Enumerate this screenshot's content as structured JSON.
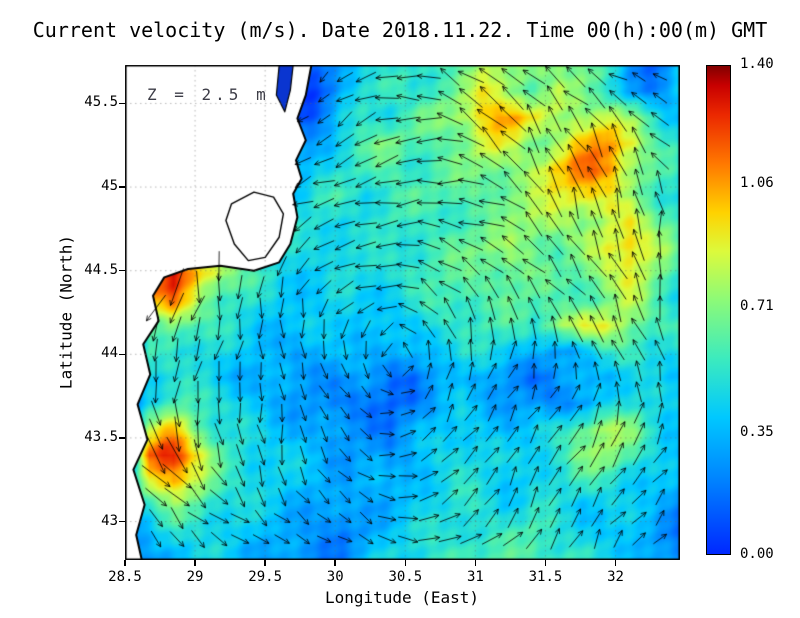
{
  "title": "Current velocity (m/s). Date 2018.11.22. Time 00(h):00(m) GMT",
  "annotation": "Z = 2.5 m",
  "axes": {
    "x_label": "Longitude (East)",
    "y_label": "Latitude (North)",
    "x_ticks": [
      {
        "v": 28.5,
        "label": "28.5"
      },
      {
        "v": 29,
        "label": "29"
      },
      {
        "v": 29.5,
        "label": "29.5"
      },
      {
        "v": 30,
        "label": "30"
      },
      {
        "v": 30.5,
        "label": "30.5"
      },
      {
        "v": 31,
        "label": "31"
      },
      {
        "v": 31.5,
        "label": "31.5"
      },
      {
        "v": 32,
        "label": "32"
      }
    ],
    "y_ticks": [
      {
        "v": 45.5,
        "label": "45.5"
      },
      {
        "v": 45,
        "label": "45"
      },
      {
        "v": 44.5,
        "label": "44.5"
      },
      {
        "v": 44,
        "label": "44"
      },
      {
        "v": 43.5,
        "label": "43.5"
      },
      {
        "v": 43,
        "label": "43"
      }
    ]
  },
  "colorbar": {
    "min": 0.0,
    "max": 1.4,
    "ticks": [
      {
        "v": 1.4,
        "label": "1.40"
      },
      {
        "v": 1.06,
        "label": "1.06"
      },
      {
        "v": 0.71,
        "label": "0.71"
      },
      {
        "v": 0.35,
        "label": "0.35"
      },
      {
        "v": 0.0,
        "label": "0.00"
      }
    ],
    "colormap": [
      {
        "t": 0.0,
        "color": "#0028ff"
      },
      {
        "t": 0.15,
        "color": "#0082ff"
      },
      {
        "t": 0.28,
        "color": "#00c8ff"
      },
      {
        "t": 0.4,
        "color": "#3cebbe"
      },
      {
        "t": 0.52,
        "color": "#8cfa78"
      },
      {
        "t": 0.62,
        "color": "#dcfa3c"
      },
      {
        "t": 0.7,
        "color": "#ffd200"
      },
      {
        "t": 0.8,
        "color": "#ff7800"
      },
      {
        "t": 0.9,
        "color": "#eb2800"
      },
      {
        "t": 0.96,
        "color": "#c80000"
      },
      {
        "t": 1.0,
        "color": "#820000"
      }
    ]
  },
  "colors": {
    "land": "#ffffff",
    "coastline": "#000000",
    "arrows": "#000000",
    "river_inlet": "#0a35d0",
    "gridlines": "#666666"
  },
  "chart_data": {
    "type": "heatmap",
    "title": "Current velocity (m/s). Date 2018.11.22. Time 00(h):00(m) GMT",
    "xlabel": "Longitude (East)",
    "ylabel": "Latitude (North)",
    "units": "m/s",
    "depth_annotation": "Z = 2.5 m",
    "x_range": [
      28.5,
      32.46
    ],
    "y_range": [
      42.77,
      45.73
    ],
    "value_range": [
      0.0,
      1.4
    ],
    "gridline_step": 0.5,
    "grid_speed": {
      "cols": 24,
      "rows": 20,
      "order": "north-to-south",
      "values": [
        [
          0,
          0,
          0,
          0,
          0,
          0,
          0,
          0.05,
          0.1,
          0.35,
          0.5,
          0.45,
          0.5,
          0.6,
          0.65,
          0.8,
          0.7,
          0.7,
          0.75,
          0.7,
          0.5,
          0.25,
          0.2,
          0.35
        ],
        [
          0,
          0,
          0,
          0,
          0,
          0,
          0,
          0.05,
          0.1,
          0.3,
          0.5,
          0.6,
          0.5,
          0.6,
          0.7,
          0.9,
          0.8,
          0.6,
          0.8,
          0.7,
          0.5,
          0.3,
          0.2,
          0.4
        ],
        [
          0,
          0,
          0,
          0,
          0,
          0,
          0,
          0.1,
          0.15,
          0.4,
          0.55,
          0.5,
          0.6,
          0.7,
          0.8,
          1.0,
          1.1,
          0.9,
          0.7,
          0.8,
          0.9,
          0.7,
          0.5,
          0.4
        ],
        [
          0,
          0,
          0,
          0,
          0,
          0,
          0.15,
          0.2,
          0.3,
          0.5,
          0.6,
          0.7,
          0.6,
          0.6,
          0.7,
          0.9,
          0.8,
          0.7,
          0.8,
          1.0,
          1.1,
          0.9,
          0.6,
          0.5
        ],
        [
          0,
          0,
          0,
          0,
          0,
          0,
          0.3,
          0.3,
          0.45,
          0.5,
          0.55,
          0.6,
          0.55,
          0.6,
          0.65,
          0.7,
          0.7,
          0.8,
          1.0,
          1.15,
          1.1,
          0.8,
          0.6,
          0.5
        ],
        [
          0,
          0,
          0,
          0,
          0,
          0.25,
          0.3,
          0.4,
          0.5,
          0.55,
          0.5,
          0.55,
          0.6,
          0.6,
          0.6,
          0.65,
          0.7,
          0.75,
          0.9,
          1.0,
          0.9,
          0.7,
          0.55,
          0.5
        ],
        [
          0,
          0,
          0,
          0.4,
          0.5,
          0.6,
          0.55,
          0.5,
          0.5,
          0.45,
          0.5,
          0.55,
          0.5,
          0.55,
          0.6,
          0.6,
          0.7,
          0.8,
          0.8,
          0.7,
          0.8,
          0.9,
          0.7,
          0.6
        ],
        [
          0,
          0,
          0.8,
          0.9,
          0.7,
          0.6,
          0.5,
          0.45,
          0.5,
          0.5,
          0.45,
          0.5,
          0.55,
          0.6,
          0.65,
          0.7,
          0.75,
          0.7,
          0.6,
          0.7,
          0.9,
          1.0,
          0.8,
          0.6
        ],
        [
          0,
          1.2,
          1.35,
          1.0,
          0.8,
          0.6,
          0.5,
          0.45,
          0.4,
          0.45,
          0.5,
          0.5,
          0.55,
          0.6,
          0.6,
          0.65,
          0.7,
          0.65,
          0.6,
          0.65,
          0.8,
          0.9,
          0.7,
          0.55
        ],
        [
          0,
          1.0,
          1.1,
          0.8,
          0.6,
          0.5,
          0.45,
          0.4,
          0.4,
          0.45,
          0.4,
          0.45,
          0.5,
          0.55,
          0.6,
          0.6,
          0.65,
          0.6,
          0.55,
          0.6,
          0.7,
          0.8,
          0.6,
          0.5
        ],
        [
          0.05,
          0.6,
          0.7,
          0.6,
          0.5,
          0.45,
          0.4,
          0.35,
          0.4,
          0.45,
          0.4,
          0.35,
          0.4,
          0.5,
          0.55,
          0.6,
          0.55,
          0.5,
          0.8,
          0.9,
          0.85,
          0.7,
          0.6,
          0.55
        ],
        [
          0.05,
          0.5,
          0.55,
          0.5,
          0.45,
          0.4,
          0.35,
          0.3,
          0.35,
          0.4,
          0.35,
          0.3,
          0.35,
          0.45,
          0.5,
          0.45,
          0.4,
          0.35,
          0.3,
          0.35,
          0.5,
          0.6,
          0.5,
          0.45
        ],
        [
          0.05,
          0.45,
          0.5,
          0.45,
          0.4,
          0.35,
          0.3,
          0.3,
          0.3,
          0.25,
          0.25,
          0.2,
          0.2,
          0.3,
          0.35,
          0.3,
          0.25,
          0.2,
          0.25,
          0.3,
          0.4,
          0.45,
          0.4,
          0.35
        ],
        [
          0.05,
          0.5,
          0.6,
          0.55,
          0.5,
          0.4,
          0.35,
          0.3,
          0.25,
          0.2,
          0.2,
          0.15,
          0.2,
          0.3,
          0.4,
          0.35,
          0.3,
          0.25,
          0.2,
          0.3,
          0.45,
          0.5,
          0.45,
          0.4
        ],
        [
          0.1,
          0.8,
          1.0,
          0.7,
          0.5,
          0.45,
          0.4,
          0.35,
          0.3,
          0.25,
          0.25,
          0.2,
          0.3,
          0.4,
          0.45,
          0.4,
          0.35,
          0.4,
          0.5,
          0.7,
          0.8,
          0.7,
          0.5,
          0.4
        ],
        [
          0.1,
          1.2,
          1.3,
          0.9,
          0.6,
          0.5,
          0.45,
          0.4,
          0.35,
          0.3,
          0.3,
          0.25,
          0.35,
          0.45,
          0.5,
          0.45,
          0.4,
          0.45,
          0.55,
          0.7,
          0.75,
          0.6,
          0.45,
          0.35
        ],
        [
          0.1,
          0.9,
          1.1,
          0.8,
          0.55,
          0.5,
          0.45,
          0.4,
          0.35,
          0.3,
          0.35,
          0.3,
          0.4,
          0.45,
          0.5,
          0.45,
          0.4,
          0.45,
          0.5,
          0.55,
          0.5,
          0.45,
          0.4,
          0.3
        ],
        [
          0.3,
          0.5,
          0.7,
          0.6,
          0.5,
          0.45,
          0.4,
          0.35,
          0.3,
          0.25,
          0.3,
          0.35,
          0.4,
          0.45,
          0.5,
          0.5,
          0.45,
          0.5,
          0.45,
          0.4,
          0.45,
          0.4,
          0.35,
          0.25
        ],
        [
          0.25,
          0.35,
          0.45,
          0.5,
          0.45,
          0.4,
          0.35,
          0.3,
          0.25,
          0.2,
          0.3,
          0.4,
          0.45,
          0.5,
          0.55,
          0.5,
          0.55,
          0.6,
          0.5,
          0.45,
          0.4,
          0.35,
          0.3,
          0.2
        ],
        [
          0.2,
          0.3,
          0.35,
          0.4,
          0.45,
          0.35,
          0.3,
          0.25,
          0.2,
          0.25,
          0.35,
          0.45,
          0.5,
          0.55,
          0.6,
          0.55,
          0.6,
          0.65,
          0.55,
          0.5,
          0.45,
          0.4,
          0.3,
          0.2
        ]
      ]
    },
    "quiver": {
      "cols": 13,
      "rows": 11,
      "order": "north-to-south",
      "u": [
        [
          -0.55,
          -0.62,
          -0.58,
          -0.65,
          -0.6,
          -0.55,
          -0.63,
          -0.58,
          -0.66,
          -0.6,
          -0.57,
          -0.64,
          -0.6
        ],
        [
          -0.45,
          -0.52,
          -0.47,
          -0.5,
          -0.46,
          -0.53,
          -0.48,
          -0.45,
          -0.52,
          -0.49,
          -0.46,
          -0.51,
          -0.48
        ],
        [
          -0.36,
          -0.42,
          -0.38,
          -0.44,
          -0.4,
          -0.36,
          -0.42,
          -0.38,
          -0.35,
          -0.41,
          -0.39,
          -0.36,
          -0.4
        ],
        [
          -0.3,
          -0.34,
          -0.3,
          -0.36,
          -0.32,
          -0.28,
          -0.34,
          -0.3,
          -0.35,
          -0.31,
          -0.29,
          -0.33,
          -0.31
        ],
        [
          -0.24,
          -0.28,
          -0.24,
          -0.29,
          -0.26,
          -0.22,
          -0.27,
          -0.24,
          -0.28,
          -0.25,
          -0.23,
          -0.27,
          -0.25
        ],
        [
          -0.14,
          -0.17,
          -0.12,
          -0.16,
          -0.13,
          -0.15,
          -0.11,
          -0.14,
          -0.16,
          -0.12,
          -0.14,
          -0.15,
          -0.13
        ],
        [
          -0.02,
          0.02,
          -0.01,
          0.03,
          0.0,
          -0.02,
          0.02,
          0.0,
          0.03,
          -0.01,
          0.01,
          -0.02,
          0.0
        ],
        [
          0.1,
          0.14,
          0.11,
          0.15,
          0.12,
          0.09,
          0.13,
          0.11,
          0.14,
          0.1,
          0.12,
          0.15,
          0.11
        ],
        [
          0.22,
          0.26,
          0.23,
          0.2,
          0.24,
          0.21,
          0.25,
          0.23,
          0.26,
          0.22,
          0.2,
          0.24,
          0.23
        ],
        [
          0.34,
          0.38,
          0.35,
          0.32,
          0.36,
          0.33,
          0.37,
          0.35,
          0.32,
          0.36,
          0.34,
          0.37,
          0.35
        ],
        [
          0.45,
          0.48,
          0.44,
          0.47,
          0.43,
          0.46,
          0.44,
          0.48,
          0.45,
          0.42,
          0.46,
          0.43,
          0.45
        ]
      ],
      "v": [
        [
          -0.78,
          -0.7,
          -0.52,
          -0.43,
          -0.25,
          -0.16,
          0.02,
          0.1,
          0.28,
          0.36,
          0.54,
          0.62,
          0.8
        ],
        [
          -0.82,
          -0.65,
          -0.56,
          -0.38,
          -0.29,
          -0.12,
          -0.03,
          0.14,
          0.24,
          0.41,
          0.5,
          0.67,
          0.76
        ],
        [
          -0.78,
          -0.7,
          -0.52,
          -0.43,
          -0.25,
          -0.16,
          0.02,
          0.1,
          0.28,
          0.36,
          0.54,
          0.62,
          0.8
        ],
        [
          -0.82,
          -0.65,
          -0.56,
          -0.38,
          -0.29,
          -0.12,
          -0.03,
          0.14,
          0.24,
          0.41,
          0.5,
          0.67,
          0.76
        ],
        [
          -0.78,
          -0.7,
          -0.52,
          -0.43,
          -0.25,
          -0.16,
          0.02,
          0.1,
          0.28,
          0.36,
          0.54,
          0.62,
          0.8
        ],
        [
          -0.82,
          -0.65,
          -0.56,
          -0.38,
          -0.29,
          -0.12,
          -0.03,
          0.14,
          0.24,
          0.41,
          0.5,
          0.67,
          0.76
        ],
        [
          -0.78,
          -0.7,
          -0.52,
          -0.43,
          -0.25,
          -0.16,
          0.02,
          0.1,
          0.28,
          0.36,
          0.54,
          0.62,
          0.8
        ],
        [
          -0.82,
          -0.65,
          -0.56,
          -0.38,
          -0.29,
          -0.12,
          -0.03,
          0.14,
          0.24,
          0.41,
          0.5,
          0.67,
          0.76
        ],
        [
          -0.78,
          -0.7,
          -0.52,
          -0.43,
          -0.25,
          -0.16,
          0.02,
          0.1,
          0.28,
          0.36,
          0.54,
          0.62,
          0.8
        ],
        [
          -0.82,
          -0.65,
          -0.56,
          -0.38,
          -0.29,
          -0.12,
          -0.03,
          0.14,
          0.24,
          0.41,
          0.5,
          0.67,
          0.76
        ],
        [
          -0.78,
          -0.7,
          -0.52,
          -0.43,
          -0.25,
          -0.16,
          0.02,
          0.1,
          0.28,
          0.36,
          0.54,
          0.62,
          0.8
        ]
      ]
    },
    "coastline_lonlat": [
      [
        29.83,
        45.73
      ],
      [
        29.79,
        45.55
      ],
      [
        29.73,
        45.41
      ],
      [
        29.79,
        45.28
      ],
      [
        29.72,
        45.16
      ],
      [
        29.76,
        45.05
      ],
      [
        29.7,
        44.96
      ],
      [
        29.73,
        44.82
      ],
      [
        29.68,
        44.66
      ],
      [
        29.6,
        44.55
      ],
      [
        29.42,
        44.5
      ],
      [
        29.18,
        44.53
      ],
      [
        28.95,
        44.51
      ],
      [
        28.78,
        44.46
      ],
      [
        28.7,
        44.35
      ],
      [
        28.74,
        44.2
      ],
      [
        28.63,
        44.06
      ],
      [
        28.68,
        43.88
      ],
      [
        28.59,
        43.7
      ],
      [
        28.66,
        43.49
      ],
      [
        28.56,
        43.31
      ],
      [
        28.64,
        43.1
      ],
      [
        28.58,
        42.92
      ],
      [
        28.62,
        42.77
      ]
    ],
    "lakes_lonlat": [
      [
        [
          29.26,
          44.9
        ],
        [
          29.42,
          44.97
        ],
        [
          29.56,
          44.94
        ],
        [
          29.63,
          44.84
        ],
        [
          29.6,
          44.7
        ],
        [
          29.5,
          44.58
        ],
        [
          29.38,
          44.56
        ],
        [
          29.28,
          44.66
        ],
        [
          29.22,
          44.8
        ]
      ]
    ],
    "river_inlet_lonlat": [
      [
        29.6,
        45.73
      ],
      [
        29.7,
        45.73
      ],
      [
        29.68,
        45.58
      ],
      [
        29.64,
        45.45
      ],
      [
        29.58,
        45.55
      ]
    ]
  }
}
